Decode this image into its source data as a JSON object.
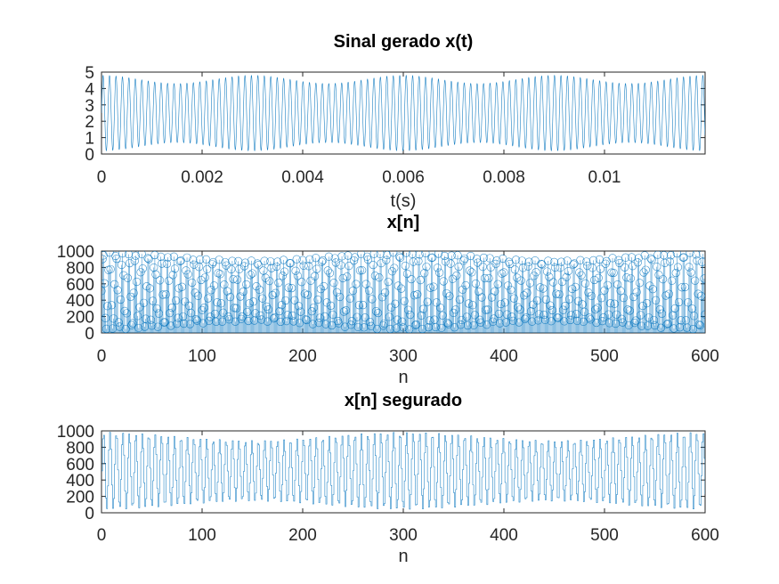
{
  "figure": {
    "background": "#ffffff",
    "series_color": "#0072bd"
  },
  "chart_data": [
    {
      "type": "line",
      "title": "Sinal gerado x(t)",
      "xlabel": "t(s)",
      "ylabel": "",
      "xlim": [
        0,
        0.012
      ],
      "ylim": [
        0,
        5
      ],
      "xticks": [
        0,
        0.002,
        0.004,
        0.006,
        0.008,
        0.01
      ],
      "xtick_labels": [
        "0",
        "0.002",
        "0.004",
        "0.006",
        "0.008",
        "0.01"
      ],
      "yticks": [
        0,
        1,
        2,
        3,
        4,
        5
      ],
      "ytick_labels": [
        "0",
        "1",
        "2",
        "3",
        "4",
        "5"
      ],
      "grid": false,
      "signal": {
        "offset": 2.5,
        "carrier_hz": 7800,
        "amplitude_max": 2.3,
        "amplitude_min": 1.8,
        "envelope_hz": 333.3,
        "sample_count": 4000
      }
    },
    {
      "type": "scatter",
      "title": "x[n]",
      "xlabel": "n",
      "ylabel": "",
      "xlim": [
        0,
        600
      ],
      "ylim": [
        0,
        1000
      ],
      "xticks": [
        0,
        100,
        200,
        300,
        400,
        500,
        600
      ],
      "xtick_labels": [
        "0",
        "100",
        "200",
        "300",
        "400",
        "500",
        "600"
      ],
      "yticks": [
        0,
        200,
        400,
        600,
        800,
        1000
      ],
      "ytick_labels": [
        "0",
        "200",
        "400",
        "600",
        "800",
        "1000"
      ],
      "grid": false,
      "marker": "circle",
      "stem": true,
      "signal": {
        "offset": 512,
        "samples_per_cycle": 6.41,
        "amplitude_max": 470,
        "amplitude_min": 370,
        "envelope_period_n": 300,
        "n_start": 0,
        "n_end": 600
      }
    },
    {
      "type": "line",
      "title": "x[n] segurado",
      "xlabel": "n",
      "ylabel": "",
      "xlim": [
        0,
        600
      ],
      "ylim": [
        0,
        1000
      ],
      "xticks": [
        0,
        100,
        200,
        300,
        400,
        500,
        600
      ],
      "xtick_labels": [
        "0",
        "100",
        "200",
        "300",
        "400",
        "500",
        "600"
      ],
      "yticks": [
        0,
        200,
        400,
        600,
        800,
        1000
      ],
      "ytick_labels": [
        "0",
        "200",
        "400",
        "600",
        "800",
        "1000"
      ],
      "grid": false,
      "step": true,
      "signal": {
        "offset": 512,
        "samples_per_cycle": 6.41,
        "amplitude_max": 470,
        "amplitude_min": 370,
        "envelope_period_n": 300,
        "n_start": 0,
        "n_end": 600
      }
    }
  ]
}
